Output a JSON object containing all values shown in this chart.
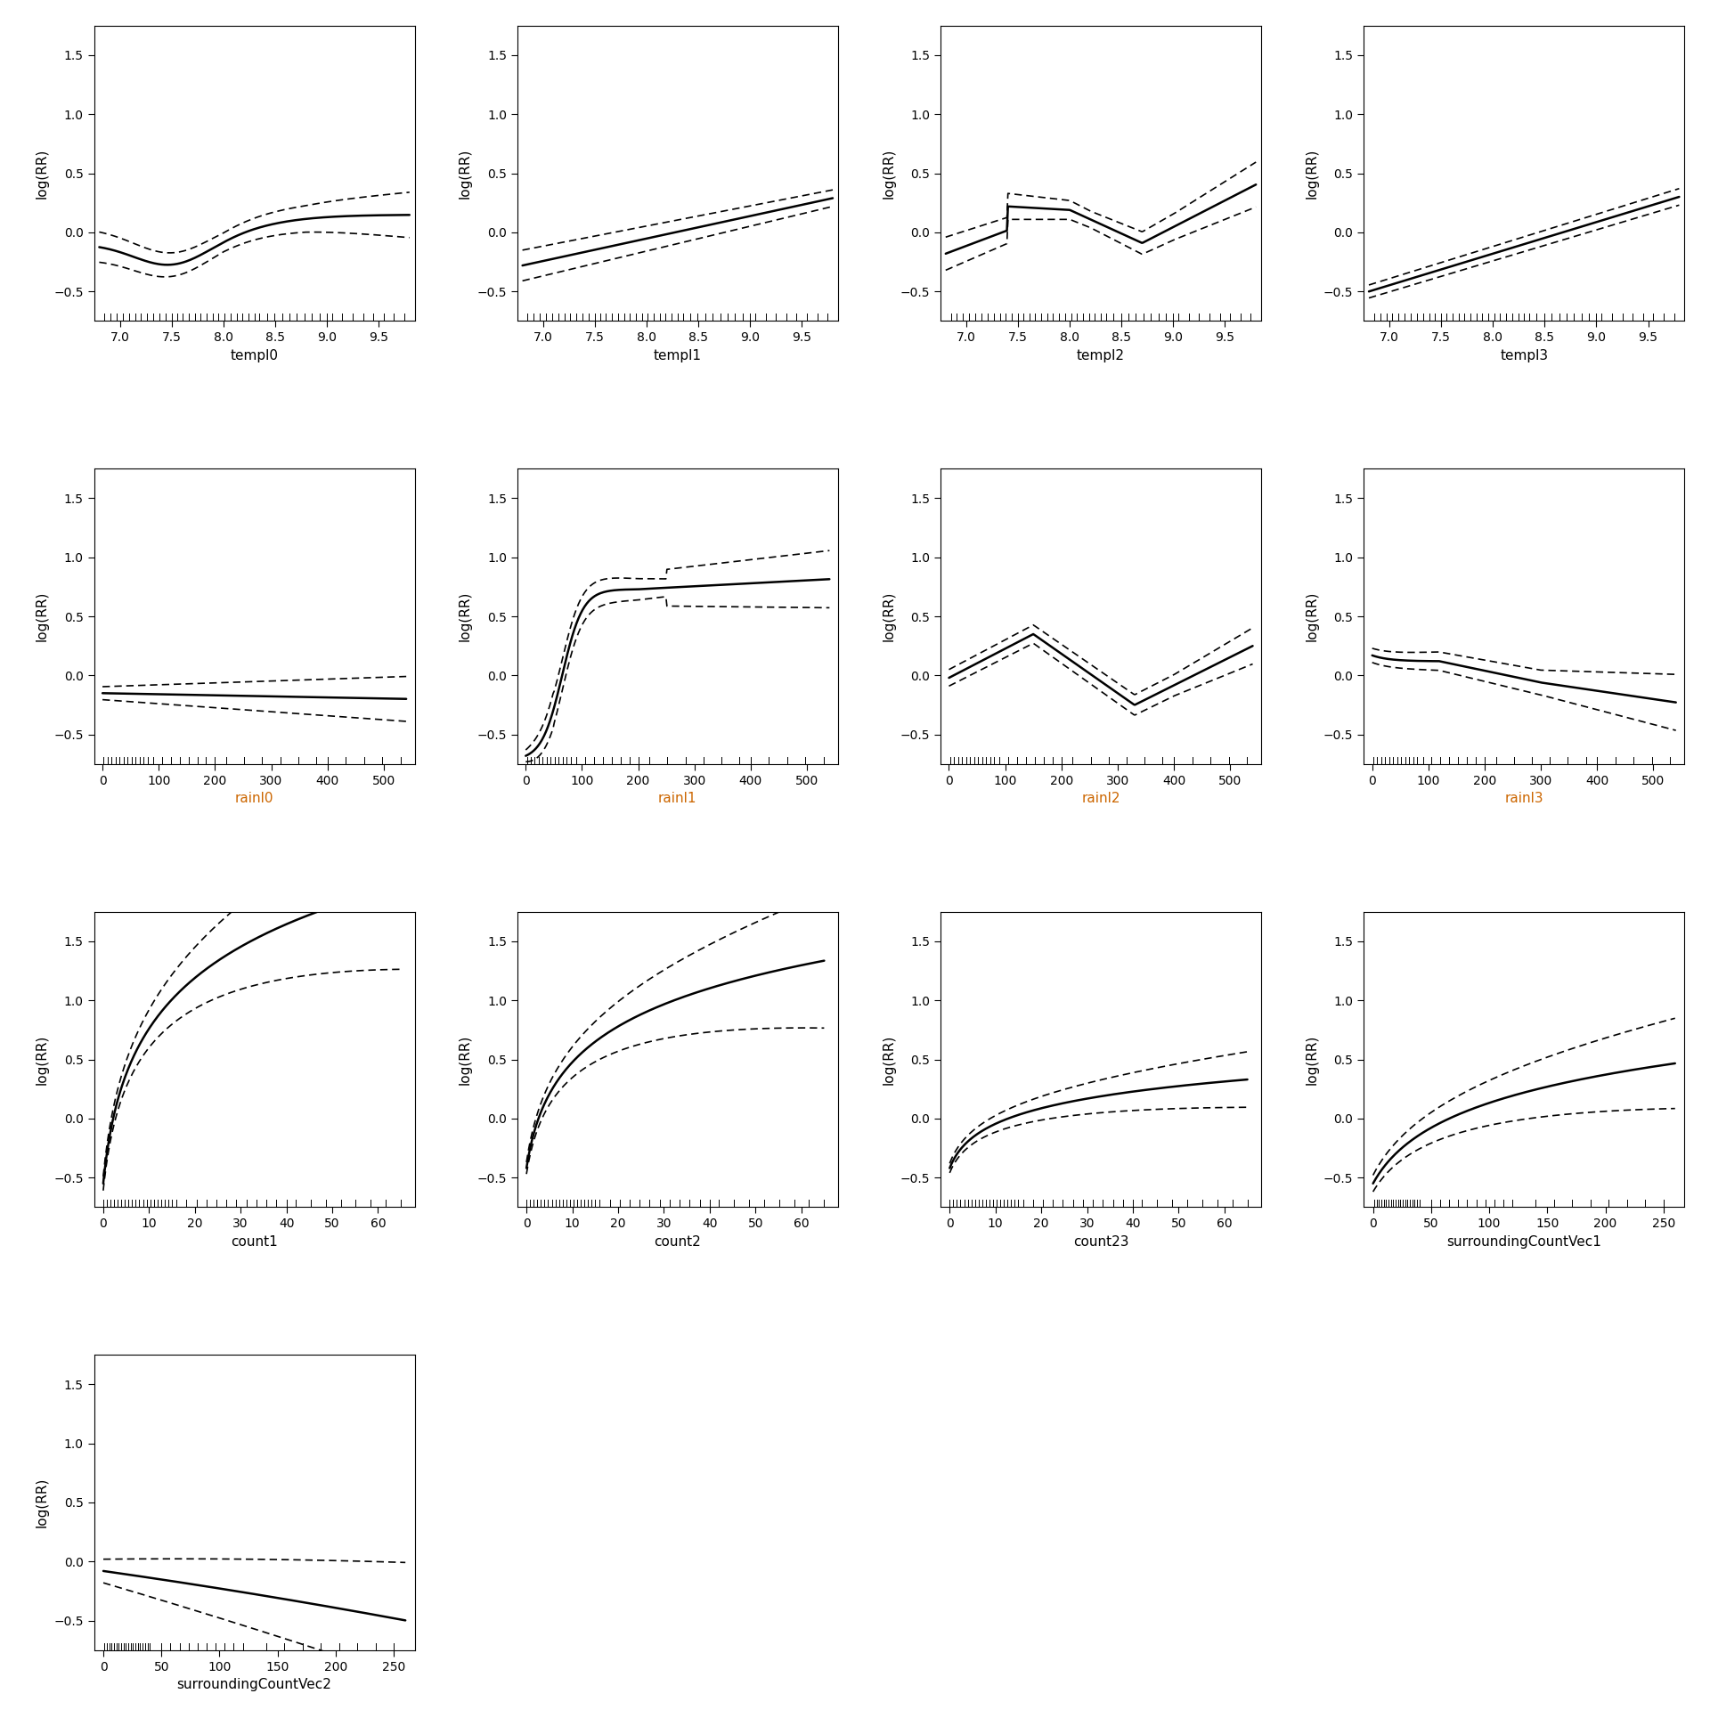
{
  "subplots": [
    {
      "name": "templ0",
      "xlabel": "templ0",
      "ylabel": "log(RR)",
      "xlim": [
        6.75,
        9.85
      ],
      "ylim": [
        -0.75,
        1.75
      ],
      "yticks": [
        -0.5,
        0.0,
        0.5,
        1.0,
        1.5
      ],
      "xticks": [
        7.0,
        7.5,
        8.0,
        8.5,
        9.0,
        9.5
      ],
      "curve_type": "templ0",
      "xlabel_color": "black"
    },
    {
      "name": "templ1",
      "xlabel": "templ1",
      "ylabel": "log(RR)",
      "xlim": [
        6.75,
        9.85
      ],
      "ylim": [
        -0.75,
        1.75
      ],
      "yticks": [
        -0.5,
        0.0,
        0.5,
        1.0,
        1.5
      ],
      "xticks": [
        7.0,
        7.5,
        8.0,
        8.5,
        9.0,
        9.5
      ],
      "curve_type": "templ1",
      "xlabel_color": "black"
    },
    {
      "name": "templ2",
      "xlabel": "templ2",
      "ylabel": "log(RR)",
      "xlim": [
        6.75,
        9.85
      ],
      "ylim": [
        -0.75,
        1.75
      ],
      "yticks": [
        -0.5,
        0.0,
        0.5,
        1.0,
        1.5
      ],
      "xticks": [
        7.0,
        7.5,
        8.0,
        8.5,
        9.0,
        9.5
      ],
      "curve_type": "templ2",
      "xlabel_color": "black"
    },
    {
      "name": "templ3",
      "xlabel": "templ3",
      "ylabel": "log(RR)",
      "xlim": [
        6.75,
        9.85
      ],
      "ylim": [
        -0.75,
        1.75
      ],
      "yticks": [
        -0.5,
        0.0,
        0.5,
        1.0,
        1.5
      ],
      "xticks": [
        7.0,
        7.5,
        8.0,
        8.5,
        9.0,
        9.5
      ],
      "curve_type": "templ3",
      "xlabel_color": "black"
    },
    {
      "name": "rainl0",
      "xlabel": "rainl0",
      "ylabel": "log(RR)",
      "xlim": [
        -15,
        555
      ],
      "ylim": [
        -0.75,
        1.75
      ],
      "yticks": [
        -0.5,
        0.0,
        0.5,
        1.0,
        1.5
      ],
      "xticks": [
        0,
        100,
        200,
        300,
        400,
        500
      ],
      "curve_type": "rainl0",
      "xlabel_color": "#cc6600"
    },
    {
      "name": "rainl1",
      "xlabel": "rainl1",
      "ylabel": "log(RR)",
      "xlim": [
        -15,
        555
      ],
      "ylim": [
        -0.75,
        1.75
      ],
      "yticks": [
        -0.5,
        0.0,
        0.5,
        1.0,
        1.5
      ],
      "xticks": [
        0,
        100,
        200,
        300,
        400,
        500
      ],
      "curve_type": "rainl1",
      "xlabel_color": "#cc6600"
    },
    {
      "name": "rainl2",
      "xlabel": "rainl2",
      "ylabel": "log(RR)",
      "xlim": [
        -15,
        555
      ],
      "ylim": [
        -0.75,
        1.75
      ],
      "yticks": [
        -0.5,
        0.0,
        0.5,
        1.0,
        1.5
      ],
      "xticks": [
        0,
        100,
        200,
        300,
        400,
        500
      ],
      "curve_type": "rainl2",
      "xlabel_color": "#cc6600"
    },
    {
      "name": "rainl3",
      "xlabel": "rainl3",
      "ylabel": "log(RR)",
      "xlim": [
        -15,
        555
      ],
      "ylim": [
        -0.75,
        1.75
      ],
      "yticks": [
        -0.5,
        0.0,
        0.5,
        1.0,
        1.5
      ],
      "xticks": [
        0,
        100,
        200,
        300,
        400,
        500
      ],
      "curve_type": "rainl3",
      "xlabel_color": "#cc6600"
    },
    {
      "name": "count1",
      "xlabel": "count1",
      "ylabel": "log(RR)",
      "xlim": [
        -2,
        68
      ],
      "ylim": [
        -0.75,
        1.75
      ],
      "yticks": [
        -0.5,
        0.0,
        0.5,
        1.0,
        1.5
      ],
      "xticks": [
        0,
        10,
        20,
        30,
        40,
        50,
        60
      ],
      "curve_type": "count1",
      "xlabel_color": "black"
    },
    {
      "name": "count2",
      "xlabel": "count2",
      "ylabel": "log(RR)",
      "xlim": [
        -2,
        68
      ],
      "ylim": [
        -0.75,
        1.75
      ],
      "yticks": [
        -0.5,
        0.0,
        0.5,
        1.0,
        1.5
      ],
      "xticks": [
        0,
        10,
        20,
        30,
        40,
        50,
        60
      ],
      "curve_type": "count2",
      "xlabel_color": "black"
    },
    {
      "name": "count23",
      "xlabel": "count23",
      "ylabel": "log(RR)",
      "xlim": [
        -2,
        68
      ],
      "ylim": [
        -0.75,
        1.75
      ],
      "yticks": [
        -0.5,
        0.0,
        0.5,
        1.0,
        1.5
      ],
      "xticks": [
        0,
        10,
        20,
        30,
        40,
        50,
        60
      ],
      "curve_type": "count23",
      "xlabel_color": "black"
    },
    {
      "name": "surroundingCountVec1",
      "xlabel": "surroundingCountVec1",
      "ylabel": "log(RR)",
      "xlim": [
        -8,
        268
      ],
      "ylim": [
        -0.75,
        1.75
      ],
      "yticks": [
        -0.5,
        0.0,
        0.5,
        1.0,
        1.5
      ],
      "xticks": [
        0,
        50,
        100,
        150,
        200,
        250
      ],
      "curve_type": "surroundingCountVec1",
      "xlabel_color": "black"
    },
    {
      "name": "surroundingCountVec2",
      "xlabel": "surroundingCountVec2",
      "ylabel": "log(RR)",
      "xlim": [
        -8,
        268
      ],
      "ylim": [
        -0.75,
        1.75
      ],
      "yticks": [
        -0.5,
        0.0,
        0.5,
        1.0,
        1.5
      ],
      "xticks": [
        0,
        50,
        100,
        150,
        200,
        250
      ],
      "curve_type": "surroundingCountVec2",
      "xlabel_color": "black"
    }
  ],
  "background_color": "#ffffff",
  "line_color": "#000000",
  "line_width": 1.8,
  "ci_linewidth": 1.2,
  "tick_label_size": 10,
  "axis_label_size": 11
}
